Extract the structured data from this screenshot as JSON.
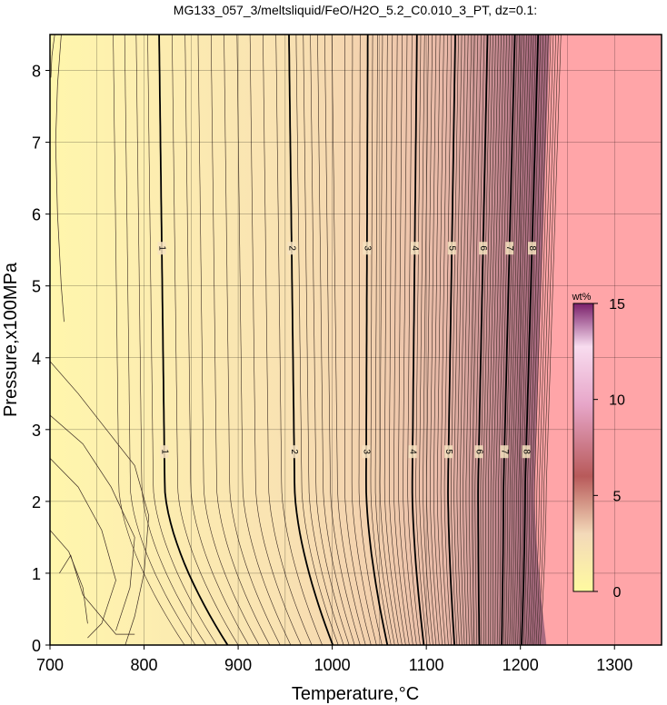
{
  "chart_data": {
    "type": "contour",
    "title": "MG133_057_3/meltsliquid/FeO/H2O_5.2_C0.010_3_PT, dz=0.1:",
    "xlabel": "Temperature,°C",
    "ylabel": "Pressure,x100MPa",
    "xlim": [
      700,
      1350
    ],
    "ylim": [
      0,
      8.5
    ],
    "xticks": [
      "700",
      "800",
      "900",
      "1000",
      "1100",
      "1200",
      "1300"
    ],
    "yticks": [
      "0",
      "1",
      "2",
      "3",
      "4",
      "5",
      "6",
      "7",
      "8"
    ],
    "grid": true,
    "contour_interval": 0.1,
    "major_contours": [
      {
        "level": 1,
        "label": "1",
        "t_low": 830,
        "t_high": 822
      },
      {
        "level": 2,
        "label": "2",
        "t_low": 957,
        "t_high": 960
      },
      {
        "level": 3,
        "label": "3",
        "t_low": 1023,
        "t_high": 1036
      },
      {
        "level": 4,
        "label": "4",
        "t_low": 1067,
        "t_high": 1085
      },
      {
        "level": 5,
        "label": "5",
        "t_low": 1104,
        "t_high": 1123
      },
      {
        "level": 6,
        "label": "6",
        "t_low": 1134,
        "t_high": 1155
      },
      {
        "level": 7,
        "label": "7",
        "t_low": 1161,
        "t_high": 1182
      },
      {
        "level": 8,
        "label": "8",
        "t_low": 1185,
        "t_high": 1205
      }
    ],
    "colorbar": {
      "title": "wt%",
      "min": 0,
      "max": 15,
      "ticks": [
        "0",
        "5",
        "10",
        "15"
      ]
    },
    "colors": {
      "low": "#fffaad",
      "mid": "#f0c8a8",
      "high": "#a86a80",
      "no_melt": "#ffa5a8"
    }
  }
}
